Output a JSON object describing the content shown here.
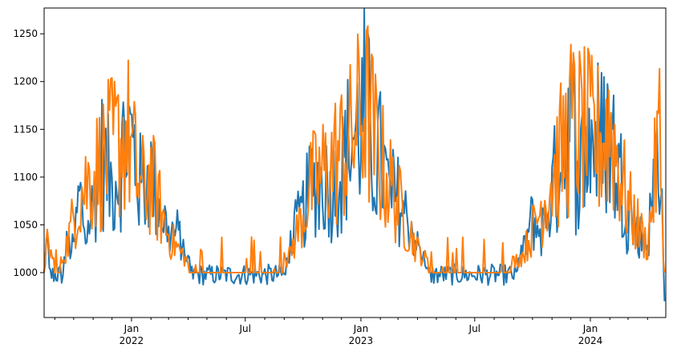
{
  "chart_data": {
    "type": "line",
    "title": "",
    "xlabel": "",
    "ylabel": "",
    "x_range": [
      "2021-08-15",
      "2024-04-30"
    ],
    "ylim": [
      953,
      1277
    ],
    "grid": false,
    "legend": "none",
    "y_ticks": [
      1000,
      1050,
      1100,
      1150,
      1200,
      1250
    ],
    "x_major_ticks": [
      {
        "date": "2022-01-01",
        "label": "Jan",
        "year": "2022"
      },
      {
        "date": "2022-07-01",
        "label": "Jul",
        "year": ""
      },
      {
        "date": "2023-01-01",
        "label": "Jan",
        "year": "2023"
      },
      {
        "date": "2023-07-01",
        "label": "Jul",
        "year": ""
      },
      {
        "date": "2024-01-01",
        "label": "Jan",
        "year": "2024"
      }
    ],
    "x_minor_ticks": [
      "2021-09-01",
      "2021-10-01",
      "2021-11-01",
      "2021-12-01",
      "2022-02-01",
      "2022-03-01",
      "2022-04-01",
      "2022-05-01",
      "2022-06-01",
      "2022-08-01",
      "2022-09-01",
      "2022-10-01",
      "2022-11-01",
      "2022-12-01",
      "2023-02-01",
      "2023-03-01",
      "2023-04-01",
      "2023-05-01",
      "2023-06-01",
      "2023-08-01",
      "2023-09-01",
      "2023-10-01",
      "2023-11-01",
      "2023-12-01",
      "2024-02-01",
      "2024-03-01",
      "2024-04-01"
    ],
    "series": [
      {
        "color": "#1f77b4",
        "line_width": 2,
        "values_note": "daily points; key daily extremes listed in points",
        "points": [
          [
            "2021-08-15",
            1000
          ],
          [
            "2021-08-20",
            1045
          ],
          [
            "2021-08-25",
            990
          ],
          [
            "2021-09-05",
            1005
          ],
          [
            "2021-09-10",
            985
          ],
          [
            "2021-09-20",
            1040
          ],
          [
            "2021-10-01",
            1035
          ],
          [
            "2021-10-10",
            1120
          ],
          [
            "2021-10-20",
            1060
          ],
          [
            "2021-11-01",
            1100
          ],
          [
            "2021-11-15",
            1170
          ],
          [
            "2021-12-01",
            1130
          ],
          [
            "2021-12-15",
            1165
          ],
          [
            "2021-12-25",
            1215
          ],
          [
            "2022-01-05",
            1180
          ],
          [
            "2022-01-15",
            1130
          ],
          [
            "2022-02-01",
            1145
          ],
          [
            "2022-02-15",
            1100
          ],
          [
            "2022-03-01",
            1060
          ],
          [
            "2022-03-15",
            1060
          ],
          [
            "2022-04-01",
            1020
          ],
          [
            "2022-04-15",
            1000
          ],
          [
            "2022-05-01",
            975
          ],
          [
            "2022-05-15",
            995
          ],
          [
            "2022-06-01",
            985
          ],
          [
            "2022-07-01",
            990
          ],
          [
            "2022-08-01",
            985
          ],
          [
            "2022-09-01",
            1000
          ],
          [
            "2022-09-15",
            1060
          ],
          [
            "2022-10-01",
            1090
          ],
          [
            "2022-10-15",
            1135
          ],
          [
            "2022-11-01",
            1140
          ],
          [
            "2022-11-15",
            1120
          ],
          [
            "2022-12-01",
            1155
          ],
          [
            "2022-12-15",
            1200
          ],
          [
            "2023-01-01",
            1220
          ],
          [
            "2023-01-08",
            1262
          ],
          [
            "2023-01-20",
            1175
          ],
          [
            "2023-02-01",
            1170
          ],
          [
            "2023-02-15",
            1120
          ],
          [
            "2023-03-01",
            1110
          ],
          [
            "2023-03-15",
            1090
          ],
          [
            "2023-04-01",
            1040
          ],
          [
            "2023-05-01",
            985
          ],
          [
            "2023-06-01",
            985
          ],
          [
            "2023-07-01",
            990
          ],
          [
            "2023-08-01",
            980
          ],
          [
            "2023-09-01",
            1000
          ],
          [
            "2023-09-15",
            1030
          ],
          [
            "2023-10-01",
            1080
          ],
          [
            "2023-10-15",
            1060
          ],
          [
            "2023-11-01",
            1120
          ],
          [
            "2023-11-15",
            1180
          ],
          [
            "2023-12-01",
            1227
          ],
          [
            "2023-12-15",
            1150
          ],
          [
            "2024-01-01",
            1205
          ],
          [
            "2024-01-15",
            1200
          ],
          [
            "2024-02-01",
            1210
          ],
          [
            "2024-02-15",
            1150
          ],
          [
            "2024-03-01",
            1105
          ],
          [
            "2024-03-15",
            1060
          ],
          [
            "2024-04-01",
            1045
          ],
          [
            "2024-04-20",
            1212
          ],
          [
            "2024-04-28",
            970
          ]
        ]
      },
      {
        "color": "#ff7f0e",
        "line_width": 2,
        "points": [
          [
            "2021-08-15",
            1000
          ],
          [
            "2021-08-20",
            1045
          ],
          [
            "2021-09-05",
            1000
          ],
          [
            "2021-09-20",
            1040
          ],
          [
            "2021-10-10",
            1118
          ],
          [
            "2021-11-15",
            1165
          ],
          [
            "2021-12-25",
            1210
          ],
          [
            "2022-01-15",
            1125
          ],
          [
            "2022-02-01",
            1140
          ],
          [
            "2022-03-01",
            1055
          ],
          [
            "2022-04-01",
            1015
          ],
          [
            "2022-05-01",
            1000
          ],
          [
            "2022-07-01",
            1000
          ],
          [
            "2022-09-01",
            1000
          ],
          [
            "2022-10-15",
            1130
          ],
          [
            "2022-12-15",
            1195
          ],
          [
            "2023-01-08",
            1253
          ],
          [
            "2023-02-01",
            1165
          ],
          [
            "2023-03-01",
            1105
          ],
          [
            "2023-04-01",
            1035
          ],
          [
            "2023-05-01",
            1000
          ],
          [
            "2023-08-01",
            1000
          ],
          [
            "2023-09-15",
            1025
          ],
          [
            "2023-11-15",
            1175
          ],
          [
            "2023-12-01",
            1220
          ],
          [
            "2024-01-15",
            1195
          ],
          [
            "2024-02-01",
            1222
          ],
          [
            "2024-03-01",
            1100
          ],
          [
            "2024-04-01",
            1040
          ],
          [
            "2024-04-20",
            1208
          ],
          [
            "2024-04-28",
            1000
          ]
        ]
      }
    ]
  }
}
